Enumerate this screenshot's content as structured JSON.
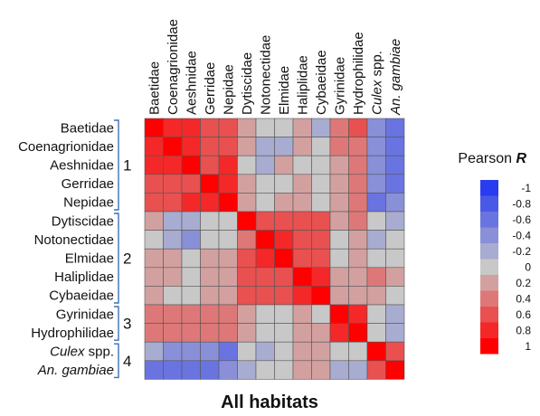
{
  "chart_data": {
    "type": "heatmap",
    "title": "All habitats",
    "rows": [
      "Baetidae",
      "Coenagrionidae",
      "Aeshnidae",
      "Gerridae",
      "Nepidae",
      "Dytiscidae",
      "Notonectidae",
      "Elmidae",
      "Haliplidae",
      "Cybaeidae",
      "Gyrinidae",
      "Hydrophilidae",
      "Culex spp.",
      "An. gambiae"
    ],
    "row_labels": [
      {
        "pre": "Baetidae",
        "it": "",
        "post": ""
      },
      {
        "pre": "Coenagrionidae",
        "it": "",
        "post": ""
      },
      {
        "pre": "Aeshnidae",
        "it": "",
        "post": ""
      },
      {
        "pre": "Gerridae",
        "it": "",
        "post": ""
      },
      {
        "pre": "Nepidae",
        "it": "",
        "post": ""
      },
      {
        "pre": "Dytiscidae",
        "it": "",
        "post": ""
      },
      {
        "pre": "Notonectidae",
        "it": "",
        "post": ""
      },
      {
        "pre": "Elmidae",
        "it": "",
        "post": ""
      },
      {
        "pre": "Haliplidae",
        "it": "",
        "post": ""
      },
      {
        "pre": "Cybaeidae",
        "it": "",
        "post": ""
      },
      {
        "pre": "Gyrinidae",
        "it": "",
        "post": ""
      },
      {
        "pre": "Hydrophilidae",
        "it": "",
        "post": ""
      },
      {
        "pre": "",
        "it": "Culex",
        "post": " spp."
      },
      {
        "pre": "",
        "it": "An. gambiae",
        "post": ""
      }
    ],
    "groups": [
      {
        "label": "1",
        "start": 0,
        "end": 4
      },
      {
        "label": "2",
        "start": 5,
        "end": 9
      },
      {
        "label": "3",
        "start": 10,
        "end": 11
      },
      {
        "label": "4",
        "start": 12,
        "end": 13
      }
    ],
    "values": [
      [
        1.0,
        0.8,
        0.8,
        0.6,
        0.6,
        0.2,
        0.0,
        0.0,
        0.2,
        -0.2,
        0.4,
        0.6,
        -0.4,
        -0.6
      ],
      [
        0.8,
        1.0,
        0.8,
        0.6,
        0.6,
        0.2,
        -0.2,
        -0.2,
        0.2,
        0.0,
        0.4,
        0.4,
        -0.4,
        -0.6
      ],
      [
        0.8,
        0.8,
        1.0,
        0.6,
        0.8,
        0.0,
        -0.2,
        0.2,
        0.0,
        0.0,
        0.2,
        0.4,
        -0.4,
        -0.6
      ],
      [
        0.6,
        0.6,
        0.6,
        1.0,
        0.8,
        0.2,
        0.0,
        0.0,
        0.2,
        0.0,
        0.2,
        0.4,
        -0.4,
        -0.6
      ],
      [
        0.6,
        0.6,
        0.8,
        0.8,
        1.0,
        0.2,
        0.0,
        0.2,
        0.2,
        0.0,
        0.2,
        0.4,
        -0.6,
        -0.4
      ],
      [
        0.2,
        -0.2,
        -0.2,
        0.0,
        0.0,
        1.0,
        0.6,
        0.6,
        0.6,
        0.6,
        0.2,
        0.4,
        0.0,
        -0.2
      ],
      [
        0.0,
        -0.2,
        -0.4,
        0.0,
        0.0,
        0.4,
        1.0,
        0.8,
        0.6,
        0.6,
        0.0,
        0.2,
        -0.2,
        0.0
      ],
      [
        0.2,
        0.2,
        0.0,
        0.2,
        0.2,
        0.6,
        0.8,
        1.0,
        0.6,
        0.6,
        0.0,
        0.2,
        0.0,
        0.0
      ],
      [
        0.2,
        0.2,
        0.0,
        0.2,
        0.2,
        0.6,
        0.6,
        0.6,
        1.0,
        0.8,
        0.2,
        0.2,
        0.4,
        0.2
      ],
      [
        0.2,
        0.0,
        0.0,
        0.2,
        0.2,
        0.6,
        0.6,
        0.6,
        0.8,
        1.0,
        0.2,
        0.2,
        0.2,
        0.0
      ],
      [
        0.4,
        0.4,
        0.4,
        0.4,
        0.4,
        0.2,
        0.0,
        0.0,
        0.2,
        0.0,
        1.0,
        0.8,
        0.0,
        -0.2
      ],
      [
        0.4,
        0.4,
        0.4,
        0.4,
        0.4,
        0.2,
        0.0,
        0.0,
        0.2,
        0.2,
        0.8,
        1.0,
        0.0,
        -0.2
      ],
      [
        -0.2,
        -0.4,
        -0.4,
        -0.4,
        -0.6,
        0.0,
        -0.2,
        0.0,
        0.2,
        0.2,
        0.0,
        0.0,
        1.0,
        0.6
      ],
      [
        -0.6,
        -0.6,
        -0.6,
        -0.6,
        -0.4,
        -0.2,
        0.0,
        0.0,
        0.2,
        0.2,
        -0.2,
        -0.2,
        0.6,
        1.0
      ]
    ],
    "legend": {
      "title_pre": "Pearson ",
      "title_it": "R",
      "ticks": [
        "-1",
        "-0.8",
        "-0.6",
        "-0.4",
        "-0.2",
        "0",
        "0.2",
        "0.4",
        "0.6",
        "0.8",
        "1"
      ],
      "placement": "right"
    },
    "colors": {
      "negative": "#2a3cf0",
      "neutral": "#c8c8c8",
      "positive": "#ff0000",
      "grid": "#555555",
      "bracket": "#3b6fb5"
    }
  }
}
